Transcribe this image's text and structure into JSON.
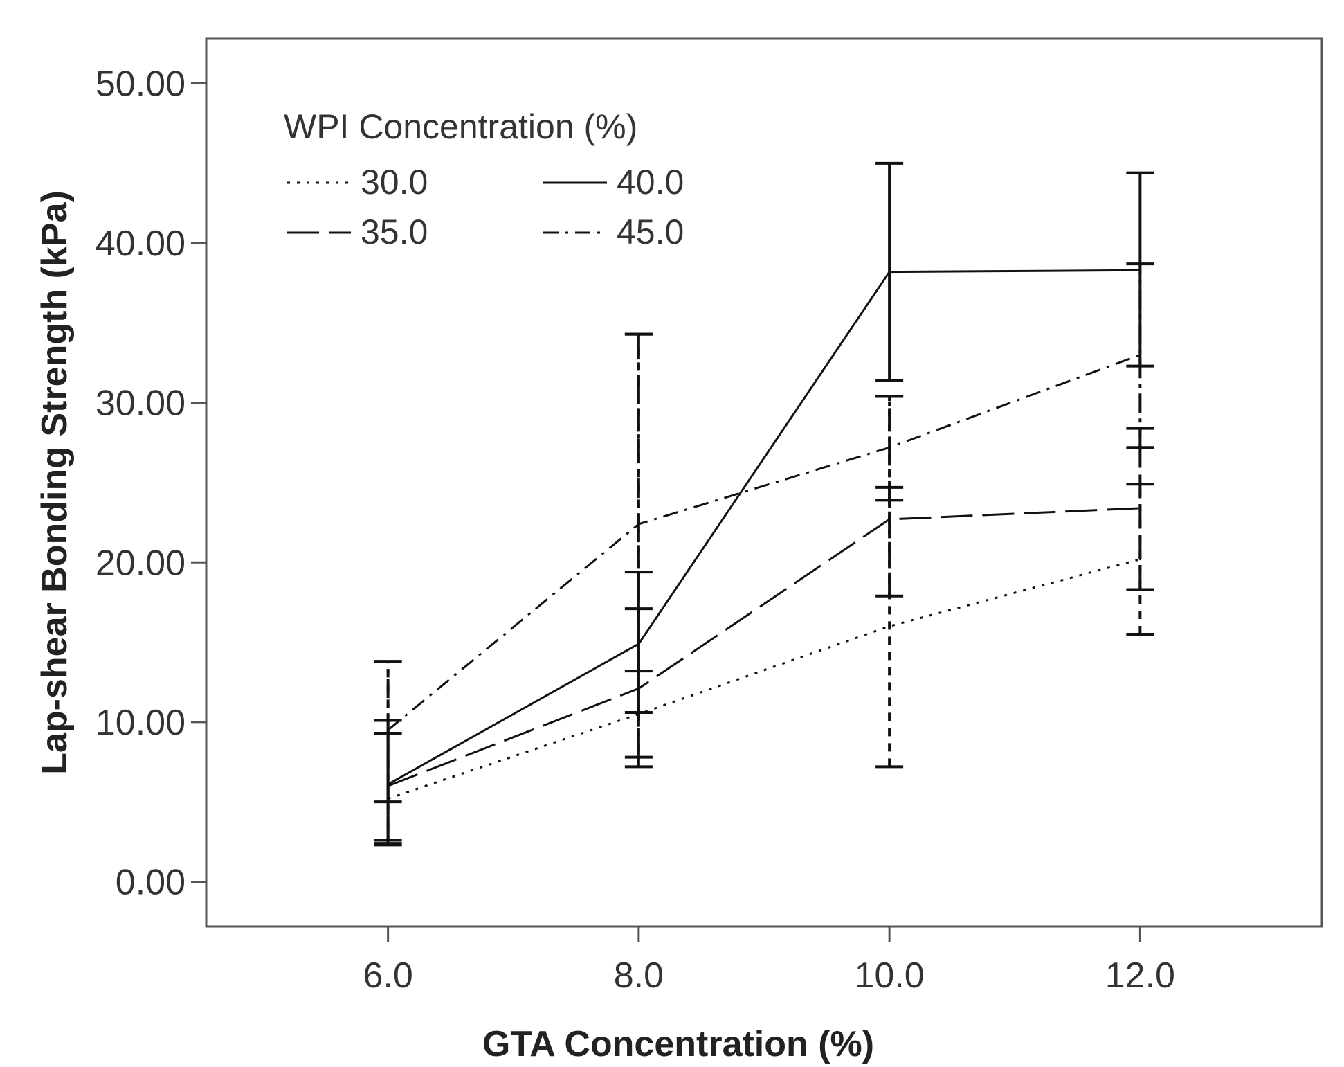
{
  "chart_data": {
    "type": "line",
    "title": "",
    "xlabel": "GTA Concentration (%)",
    "ylabel": "Lap-shear Bonding Strength (kPa)",
    "x": [
      6.0,
      8.0,
      10.0,
      12.0
    ],
    "x_tick_labels": [
      "6.0",
      "8.0",
      "10.0",
      "12.0"
    ],
    "xlim": [
      4.55,
      13.45
    ],
    "ylim": [
      -2.8,
      52.8
    ],
    "y_ticks": [
      0,
      10,
      20,
      30,
      40,
      50
    ],
    "y_tick_labels": [
      "0.00",
      "10.00",
      "20.00",
      "30.00",
      "40.00",
      "50.00"
    ],
    "grid": false,
    "legend": {
      "title": "WPI Concentration (%)",
      "position": "top-left",
      "columns": 2
    },
    "error_bars": true,
    "series": [
      {
        "name": "30.0",
        "style": "dotted",
        "values": [
          5.2,
          10.5,
          16.0,
          20.2
        ],
        "err_low": [
          2.3,
          7.2,
          7.2,
          15.5
        ],
        "err_high": [
          13.8,
          34.3,
          30.4,
          24.9
        ]
      },
      {
        "name": "35.0",
        "style": "long-dash",
        "values": [
          6.0,
          12.1,
          22.7,
          23.4
        ],
        "err_low": [
          2.6,
          7.8,
          17.9,
          18.3
        ],
        "err_high": [
          9.3,
          17.1,
          24.7,
          28.4
        ]
      },
      {
        "name": "40.0",
        "style": "solid",
        "values": [
          6.1,
          14.9,
          38.2,
          38.3
        ],
        "err_low": [
          2.4,
          10.6,
          31.4,
          32.3
        ],
        "err_high": [
          10.1,
          19.4,
          45.0,
          44.4
        ]
      },
      {
        "name": "45.0",
        "style": "dash-dot",
        "values": [
          9.5,
          22.4,
          27.2,
          33.0
        ],
        "err_low": [
          5.0,
          13.2,
          23.9,
          27.2
        ],
        "err_high": [
          13.8,
          34.3,
          30.4,
          38.7
        ]
      }
    ]
  }
}
